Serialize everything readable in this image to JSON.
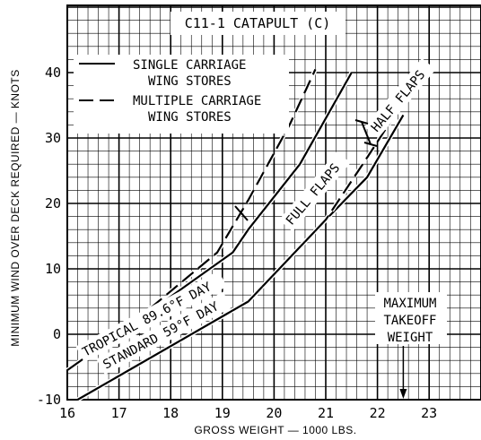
{
  "chart_data": {
    "type": "line",
    "title": "C11-1 CATAPULT (C)",
    "xlabel": "GROSS WEIGHT — 1000 LBS.",
    "ylabel": "MINIMUM WIND OVER DECK REQUIRED — KNOTS",
    "xlim": [
      16,
      24
    ],
    "ylim": [
      -10,
      50
    ],
    "xticks": [
      16,
      17,
      18,
      19,
      20,
      21,
      22,
      23
    ],
    "yticks": [
      -10,
      0,
      10,
      20,
      30,
      40
    ],
    "grid": true,
    "legend_position": "top-left",
    "legend": [
      {
        "style": "solid",
        "label_lines": [
          "SINGLE CARRIAGE",
          "WING STORES"
        ]
      },
      {
        "style": "dashed",
        "label_lines": [
          "MULTIPLE CARRIAGE",
          "WING STORES"
        ]
      }
    ],
    "series": [
      {
        "style": "solid",
        "x": [
          16.0,
          19.2,
          19.5,
          20.5,
          21.5
        ],
        "y": [
          -5.5,
          12.5,
          16,
          26,
          40
        ]
      },
      {
        "style": "dashed",
        "x": [
          17.0,
          18.9,
          19.5,
          20.3,
          20.8
        ],
        "y": [
          0,
          12.5,
          20.5,
          32,
          40.5
        ]
      },
      {
        "style": "solid",
        "x": [
          16.2,
          19.5,
          21.0,
          21.8,
          22.5
        ],
        "y": [
          -10,
          5,
          17.5,
          24,
          33.5
        ]
      },
      {
        "style": "dashed",
        "x": [
          19.5,
          21.0,
          21.8,
          22.5
        ],
        "y": [
          5,
          17.5,
          27,
          35.5
        ]
      }
    ],
    "annotations": [
      {
        "text": "TROPICAL 89.6°F DAY"
      },
      {
        "text": "STANDARD 59°F DAY"
      },
      {
        "text": "FULL FLAPS"
      },
      {
        "text": "HALF FLAPS"
      },
      {
        "text_lines": [
          "MAXIMUM",
          "TAKEOFF",
          "WEIGHT"
        ],
        "x": 22.5
      }
    ]
  }
}
